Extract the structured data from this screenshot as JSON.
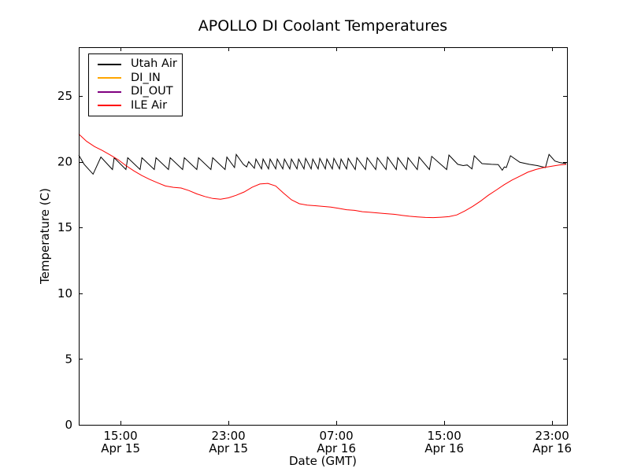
{
  "chart_data": {
    "type": "line",
    "title": "APOLLO DI Coolant Temperatures",
    "xlabel": "Date (GMT)",
    "ylabel": "Temperature (C)",
    "x_unit": "hours since Apr 15 00:00 GMT",
    "xlim": [
      11.9,
      48.1
    ],
    "ylim": [
      0,
      28.7
    ],
    "grid": false,
    "background_color": "#ffffff",
    "axis_color": "#000000",
    "legend_position": "upper left",
    "yticks": [
      0,
      5,
      10,
      15,
      20,
      25
    ],
    "xticks": [
      {
        "t": 15,
        "time": "15:00",
        "date": "Apr 15"
      },
      {
        "t": 23,
        "time": "23:00",
        "date": "Apr 15"
      },
      {
        "t": 31,
        "time": "07:00",
        "date": "Apr 16"
      },
      {
        "t": 39,
        "time": "15:00",
        "date": "Apr 16"
      },
      {
        "t": 47,
        "time": "23:00",
        "date": "Apr 16"
      }
    ],
    "series": [
      {
        "name": "Utah Air",
        "color": "#000000",
        "points": [
          [
            11.9,
            20.5
          ],
          [
            12.3,
            19.8
          ],
          [
            12.96,
            19.05
          ],
          [
            13.54,
            20.35
          ],
          [
            14.4,
            19.4
          ],
          [
            14.53,
            20.3
          ],
          [
            15.4,
            19.4
          ],
          [
            15.53,
            20.3
          ],
          [
            16.45,
            19.4
          ],
          [
            16.58,
            20.3
          ],
          [
            17.5,
            19.4
          ],
          [
            17.63,
            20.3
          ],
          [
            18.55,
            19.4
          ],
          [
            18.68,
            20.3
          ],
          [
            19.6,
            19.4
          ],
          [
            19.73,
            20.3
          ],
          [
            20.65,
            19.4
          ],
          [
            20.78,
            20.3
          ],
          [
            21.7,
            19.4
          ],
          [
            21.83,
            20.3
          ],
          [
            22.75,
            19.4
          ],
          [
            22.88,
            20.35
          ],
          [
            23.45,
            19.55
          ],
          [
            23.58,
            20.55
          ],
          [
            24.1,
            19.8
          ],
          [
            24.35,
            19.6
          ],
          [
            24.5,
            20.0
          ],
          [
            24.92,
            19.5
          ],
          [
            25.04,
            20.2
          ],
          [
            25.45,
            19.45
          ],
          [
            25.57,
            20.2
          ],
          [
            25.97,
            19.45
          ],
          [
            26.09,
            20.2
          ],
          [
            26.5,
            19.45
          ],
          [
            26.62,
            20.2
          ],
          [
            27.03,
            19.45
          ],
          [
            27.15,
            20.2
          ],
          [
            27.55,
            19.45
          ],
          [
            27.67,
            20.2
          ],
          [
            28.08,
            19.45
          ],
          [
            28.2,
            20.2
          ],
          [
            28.6,
            19.45
          ],
          [
            28.72,
            20.25
          ],
          [
            29.13,
            19.45
          ],
          [
            29.25,
            20.2
          ],
          [
            29.65,
            19.45
          ],
          [
            29.77,
            20.25
          ],
          [
            30.18,
            19.45
          ],
          [
            30.3,
            20.2
          ],
          [
            30.7,
            19.45
          ],
          [
            30.82,
            20.25
          ],
          [
            31.23,
            19.45
          ],
          [
            31.35,
            20.2
          ],
          [
            31.76,
            19.45
          ],
          [
            31.88,
            20.25
          ],
          [
            32.4,
            19.4
          ],
          [
            32.52,
            20.3
          ],
          [
            33.16,
            19.4
          ],
          [
            33.28,
            20.3
          ],
          [
            33.92,
            19.4
          ],
          [
            34.04,
            20.3
          ],
          [
            34.68,
            19.4
          ],
          [
            34.8,
            20.35
          ],
          [
            35.44,
            19.4
          ],
          [
            35.56,
            20.3
          ],
          [
            36.19,
            19.4
          ],
          [
            36.31,
            20.3
          ],
          [
            37.0,
            19.4
          ],
          [
            37.13,
            20.35
          ],
          [
            37.9,
            19.4
          ],
          [
            38.07,
            20.4
          ],
          [
            39.18,
            19.4
          ],
          [
            39.35,
            20.5
          ],
          [
            40.0,
            19.8
          ],
          [
            40.4,
            19.7
          ],
          [
            40.7,
            19.75
          ],
          [
            41.05,
            19.45
          ],
          [
            41.22,
            20.45
          ],
          [
            41.8,
            19.85
          ],
          [
            42.5,
            19.8
          ],
          [
            43.0,
            19.78
          ],
          [
            43.3,
            19.35
          ],
          [
            43.45,
            19.6
          ],
          [
            43.6,
            19.55
          ],
          [
            43.91,
            20.45
          ],
          [
            44.6,
            19.95
          ],
          [
            45.3,
            19.8
          ],
          [
            45.9,
            19.7
          ],
          [
            46.5,
            19.55
          ],
          [
            46.77,
            20.55
          ],
          [
            47.2,
            20.05
          ],
          [
            47.6,
            19.92
          ],
          [
            48.05,
            19.85
          ]
        ]
      },
      {
        "name": "DI_IN",
        "color": "#ffa500",
        "points": []
      },
      {
        "name": "DI_OUT",
        "color": "#800080",
        "points": []
      },
      {
        "name": "ILE Air",
        "color": "#ff0000",
        "points": [
          [
            11.9,
            22.1
          ],
          [
            12.48,
            21.55
          ],
          [
            13.07,
            21.15
          ],
          [
            13.65,
            20.85
          ],
          [
            14.24,
            20.5
          ],
          [
            14.82,
            20.15
          ],
          [
            15.4,
            19.7
          ],
          [
            15.99,
            19.3
          ],
          [
            16.57,
            18.95
          ],
          [
            17.16,
            18.65
          ],
          [
            17.74,
            18.4
          ],
          [
            18.32,
            18.15
          ],
          [
            18.91,
            18.05
          ],
          [
            19.49,
            18.0
          ],
          [
            20.08,
            17.8
          ],
          [
            20.66,
            17.55
          ],
          [
            21.25,
            17.35
          ],
          [
            21.83,
            17.2
          ],
          [
            22.41,
            17.15
          ],
          [
            23.0,
            17.25
          ],
          [
            23.58,
            17.45
          ],
          [
            24.17,
            17.7
          ],
          [
            24.75,
            18.05
          ],
          [
            25.33,
            18.3
          ],
          [
            25.92,
            18.35
          ],
          [
            26.5,
            18.15
          ],
          [
            27.09,
            17.6
          ],
          [
            27.67,
            17.1
          ],
          [
            28.26,
            16.8
          ],
          [
            28.84,
            16.7
          ],
          [
            29.43,
            16.65
          ],
          [
            30.01,
            16.6
          ],
          [
            30.59,
            16.55
          ],
          [
            31.18,
            16.45
          ],
          [
            31.76,
            16.35
          ],
          [
            32.35,
            16.3
          ],
          [
            32.93,
            16.2
          ],
          [
            33.52,
            16.15
          ],
          [
            34.1,
            16.1
          ],
          [
            34.69,
            16.05
          ],
          [
            35.27,
            16.0
          ],
          [
            35.85,
            15.92
          ],
          [
            36.43,
            15.85
          ],
          [
            37.02,
            15.8
          ],
          [
            37.6,
            15.76
          ],
          [
            38.18,
            15.75
          ],
          [
            38.77,
            15.78
          ],
          [
            39.35,
            15.82
          ],
          [
            39.93,
            15.95
          ],
          [
            40.52,
            16.25
          ],
          [
            41.1,
            16.6
          ],
          [
            41.69,
            17.0
          ],
          [
            42.27,
            17.45
          ],
          [
            42.86,
            17.85
          ],
          [
            43.44,
            18.25
          ],
          [
            44.02,
            18.6
          ],
          [
            44.61,
            18.9
          ],
          [
            45.19,
            19.2
          ],
          [
            45.78,
            19.4
          ],
          [
            46.36,
            19.55
          ],
          [
            46.94,
            19.65
          ],
          [
            47.53,
            19.75
          ],
          [
            48.05,
            19.8
          ]
        ]
      }
    ]
  }
}
